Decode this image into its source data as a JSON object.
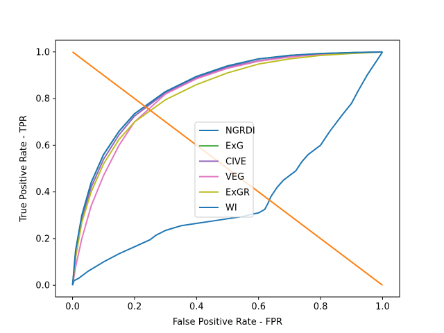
{
  "chart_data": {
    "type": "line",
    "title": "",
    "xlabel": "False Positive Rate - FPR",
    "ylabel": "True Positive Rate - TPR",
    "xlim": [
      -0.055,
      1.055
    ],
    "ylim": [
      -0.05,
      1.05
    ],
    "xticks": [
      "0.0",
      "0.2",
      "0.4",
      "0.6",
      "0.8",
      "1.0"
    ],
    "yticks": [
      "0.0",
      "0.2",
      "0.4",
      "0.6",
      "0.8",
      "1.0"
    ],
    "grid": false,
    "legend_position": "center",
    "series": [
      {
        "name": "NGRDI",
        "color": "#1f77b4",
        "points": [
          [
            0.0,
            0.0
          ],
          [
            0.005,
            0.02
          ],
          [
            0.02,
            0.03
          ],
          [
            0.05,
            0.06
          ],
          [
            0.1,
            0.1
          ],
          [
            0.15,
            0.135
          ],
          [
            0.2,
            0.165
          ],
          [
            0.25,
            0.195
          ],
          [
            0.27,
            0.215
          ],
          [
            0.3,
            0.235
          ],
          [
            0.35,
            0.255
          ],
          [
            0.4,
            0.265
          ],
          [
            0.45,
            0.275
          ],
          [
            0.5,
            0.285
          ],
          [
            0.55,
            0.295
          ],
          [
            0.58,
            0.305
          ],
          [
            0.6,
            0.31
          ],
          [
            0.62,
            0.325
          ],
          [
            0.63,
            0.35
          ],
          [
            0.64,
            0.38
          ],
          [
            0.66,
            0.42
          ],
          [
            0.68,
            0.45
          ],
          [
            0.7,
            0.47
          ],
          [
            0.72,
            0.49
          ],
          [
            0.74,
            0.53
          ],
          [
            0.76,
            0.56
          ],
          [
            0.8,
            0.6
          ],
          [
            0.83,
            0.66
          ],
          [
            0.87,
            0.73
          ],
          [
            0.9,
            0.78
          ],
          [
            0.92,
            0.83
          ],
          [
            0.95,
            0.9
          ],
          [
            0.98,
            0.96
          ],
          [
            0.99,
            0.98
          ],
          [
            1.0,
            1.0
          ]
        ]
      },
      {
        "name": "ExG",
        "color": "#2ca02c",
        "points": [
          [
            0.0,
            0.0
          ],
          [
            0.01,
            0.15
          ],
          [
            0.03,
            0.3
          ],
          [
            0.06,
            0.44
          ],
          [
            0.1,
            0.56
          ],
          [
            0.15,
            0.66
          ],
          [
            0.2,
            0.735
          ],
          [
            0.3,
            0.83
          ],
          [
            0.4,
            0.895
          ],
          [
            0.5,
            0.94
          ],
          [
            0.6,
            0.97
          ],
          [
            0.7,
            0.985
          ],
          [
            0.8,
            0.993
          ],
          [
            0.9,
            0.997
          ],
          [
            1.0,
            1.0
          ]
        ]
      },
      {
        "name": "CIVE",
        "color": "#9467bd",
        "points": [
          [
            0.0,
            0.0
          ],
          [
            0.01,
            0.13
          ],
          [
            0.03,
            0.28
          ],
          [
            0.06,
            0.42
          ],
          [
            0.1,
            0.54
          ],
          [
            0.15,
            0.645
          ],
          [
            0.2,
            0.725
          ],
          [
            0.3,
            0.825
          ],
          [
            0.4,
            0.89
          ],
          [
            0.5,
            0.935
          ],
          [
            0.6,
            0.962
          ],
          [
            0.7,
            0.98
          ],
          [
            0.8,
            0.991
          ],
          [
            0.9,
            0.996
          ],
          [
            1.0,
            1.0
          ]
        ]
      },
      {
        "name": "VEG",
        "color": "#e377c2",
        "points": [
          [
            0.0,
            0.0
          ],
          [
            0.01,
            0.08
          ],
          [
            0.03,
            0.2
          ],
          [
            0.06,
            0.34
          ],
          [
            0.1,
            0.47
          ],
          [
            0.15,
            0.6
          ],
          [
            0.2,
            0.7
          ],
          [
            0.3,
            0.82
          ],
          [
            0.4,
            0.885
          ],
          [
            0.5,
            0.93
          ],
          [
            0.6,
            0.96
          ],
          [
            0.7,
            0.978
          ],
          [
            0.8,
            0.99
          ],
          [
            0.9,
            0.996
          ],
          [
            1.0,
            1.0
          ]
        ]
      },
      {
        "name": "ExGR",
        "color": "#bcbd22",
        "points": [
          [
            0.0,
            0.0
          ],
          [
            0.01,
            0.12
          ],
          [
            0.03,
            0.27
          ],
          [
            0.06,
            0.4
          ],
          [
            0.1,
            0.52
          ],
          [
            0.15,
            0.625
          ],
          [
            0.2,
            0.7
          ],
          [
            0.3,
            0.795
          ],
          [
            0.4,
            0.86
          ],
          [
            0.5,
            0.91
          ],
          [
            0.6,
            0.948
          ],
          [
            0.7,
            0.97
          ],
          [
            0.8,
            0.985
          ],
          [
            0.9,
            0.993
          ],
          [
            1.0,
            1.0
          ]
        ]
      },
      {
        "name": "WI",
        "color": "#1f77b4",
        "points": [
          [
            0.0,
            0.0
          ],
          [
            0.01,
            0.15
          ],
          [
            0.03,
            0.3
          ],
          [
            0.06,
            0.44
          ],
          [
            0.1,
            0.56
          ],
          [
            0.15,
            0.66
          ],
          [
            0.2,
            0.735
          ],
          [
            0.3,
            0.83
          ],
          [
            0.4,
            0.895
          ],
          [
            0.5,
            0.94
          ],
          [
            0.6,
            0.97
          ],
          [
            0.7,
            0.985
          ],
          [
            0.8,
            0.993
          ],
          [
            0.9,
            0.997
          ],
          [
            1.0,
            1.0
          ]
        ]
      },
      {
        "name": "",
        "color": "#ff7f0e",
        "points": [
          [
            0.0,
            1.0
          ],
          [
            1.0,
            0.0
          ]
        ]
      }
    ]
  }
}
